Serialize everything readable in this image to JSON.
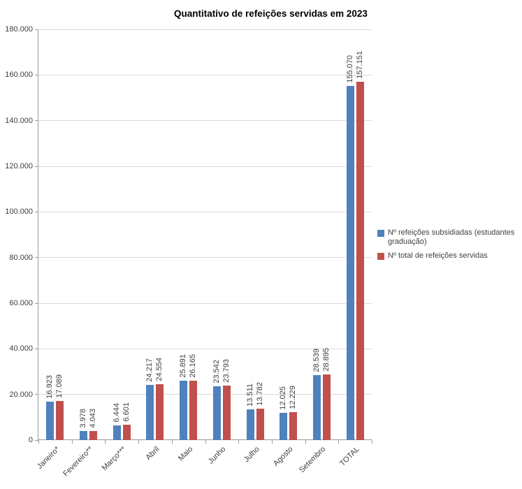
{
  "chart_data": {
    "type": "bar",
    "title": "Quantitativo de refeições servidas em 2023",
    "categories": [
      "Janeiro*",
      "Fevereiro**",
      "Março***",
      "Abril",
      "Maio",
      "Junho",
      "Julho",
      "Agosto",
      "Setembro",
      "TOTAL"
    ],
    "series": [
      {
        "name": "Nº refeições subsidiadas (estudantes graduação)",
        "color": "#4f81bd",
        "values": [
          16923,
          3978,
          6444,
          24217,
          25891,
          23542,
          13511,
          12025,
          28539,
          155070
        ],
        "labels": [
          "16.923",
          "3.978",
          "6.444",
          "24.217",
          "25.891",
          "23.542",
          "13.511",
          "12.025",
          "28.539",
          "155.070"
        ]
      },
      {
        "name": "Nº total de refeições servidas",
        "color": "#c0504d",
        "values": [
          17089,
          4043,
          6601,
          24554,
          26165,
          23793,
          13782,
          12229,
          28895,
          157151
        ],
        "labels": [
          "17.089",
          "4.043",
          "6.601",
          "24.554",
          "26.165",
          "23.793",
          "13.782",
          "12.229",
          "28.895",
          "157.151"
        ]
      }
    ],
    "ylim": [
      0,
      180000
    ],
    "y_ticks": [
      "0",
      "20.000",
      "40.000",
      "60.000",
      "80.000",
      "100.000",
      "120.000",
      "140.000",
      "160.000",
      "180.000"
    ],
    "grid": true,
    "legend_position": "right"
  }
}
